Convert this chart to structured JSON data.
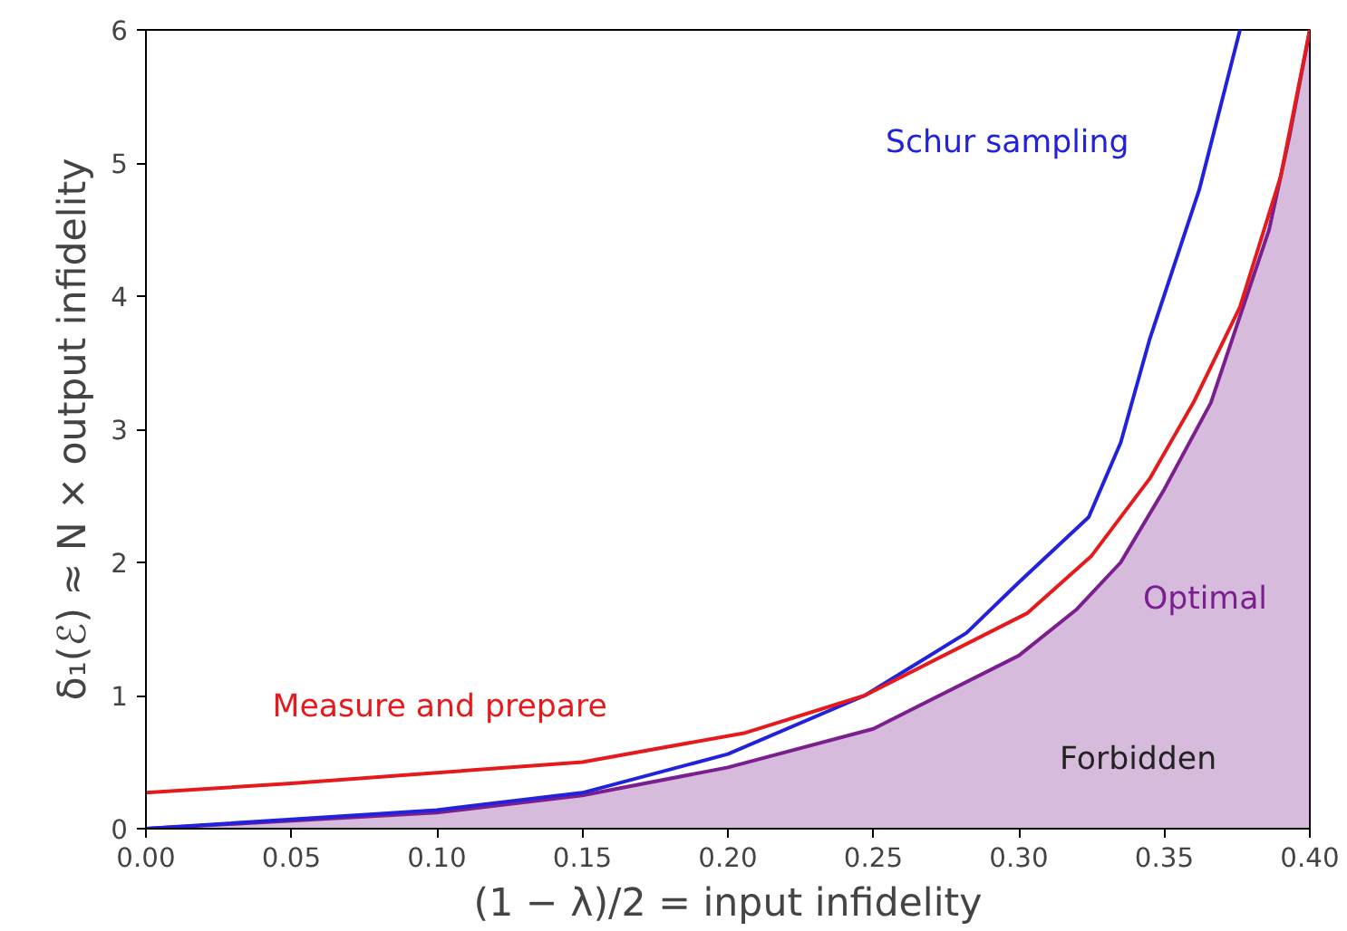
{
  "chart_data": {
    "type": "line",
    "xlabel": "(1 − λ)/2 = input infidelity",
    "ylabel": "δ₁(ℰ) ≈ N × output infidelity",
    "xlim": [
      0,
      0.4
    ],
    "ylim": [
      0,
      6
    ],
    "xticks": [
      {
        "value": 0,
        "label": "0.00"
      },
      {
        "value": 0.05,
        "label": "0.05"
      },
      {
        "value": 0.1,
        "label": "0.10"
      },
      {
        "value": 0.15,
        "label": "0.15"
      },
      {
        "value": 0.2,
        "label": "0.20"
      },
      {
        "value": 0.25,
        "label": "0.25"
      },
      {
        "value": 0.3,
        "label": "0.30"
      },
      {
        "value": 0.35,
        "label": "0.35"
      },
      {
        "value": 0.4,
        "label": "0.40"
      }
    ],
    "yticks": [
      0,
      1,
      2,
      3,
      4,
      5,
      6
    ],
    "grid": false,
    "series": [
      {
        "name": "Optimal",
        "type": "area",
        "color": "#7b1f8e",
        "x": [
          0,
          0.05,
          0.1,
          0.15,
          0.2,
          0.25,
          0.3,
          0.32,
          0.335,
          0.35,
          0.366,
          0.386,
          0.393,
          0.4
        ],
        "values": [
          0,
          0.06,
          0.12,
          0.25,
          0.46,
          0.75,
          1.3,
          1.65,
          2.0,
          2.55,
          3.2,
          4.5,
          5.2,
          6
        ]
      },
      {
        "name": "Schur sampling",
        "color": "#2222dd",
        "x": [
          0,
          0.05,
          0.1,
          0.15,
          0.2,
          0.247,
          0.282,
          0.3,
          0.324,
          0.335,
          0.345,
          0.362,
          0.376
        ],
        "values": [
          0,
          0.07,
          0.14,
          0.27,
          0.56,
          1.0,
          1.47,
          1.85,
          2.34,
          2.9,
          3.68,
          4.8,
          6
        ]
      },
      {
        "name": "Measure and prepare",
        "color": "#e41a1c",
        "x": [
          0,
          0.05,
          0.1,
          0.15,
          0.206,
          0.247,
          0.303,
          0.325,
          0.345,
          0.36,
          0.376,
          0.39,
          0.4
        ],
        "values": [
          0.27,
          0.34,
          0.42,
          0.5,
          0.72,
          1.0,
          1.62,
          2.05,
          2.63,
          3.2,
          3.92,
          4.9,
          6
        ]
      }
    ],
    "annotations": [
      "Forbidden"
    ]
  }
}
